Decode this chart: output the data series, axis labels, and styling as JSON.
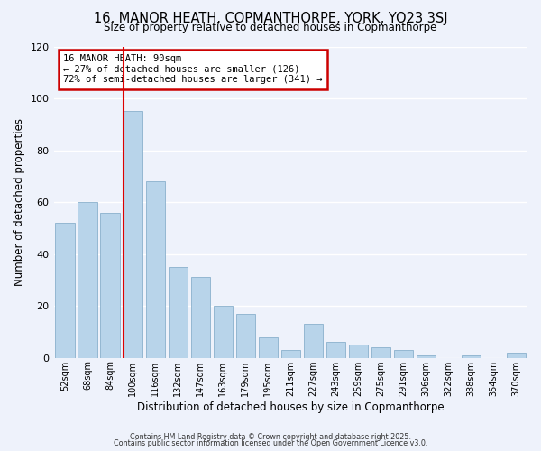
{
  "title": "16, MANOR HEATH, COPMANTHORPE, YORK, YO23 3SJ",
  "subtitle": "Size of property relative to detached houses in Copmanthorpe",
  "xlabel": "Distribution of detached houses by size in Copmanthorpe",
  "ylabel": "Number of detached properties",
  "bar_color": "#b8d4ea",
  "bar_edge_color": "#8ab0cc",
  "background_color": "#eef2fb",
  "grid_color": "#ffffff",
  "vline_color": "#dd0000",
  "categories": [
    "52sqm",
    "68sqm",
    "84sqm",
    "100sqm",
    "116sqm",
    "132sqm",
    "147sqm",
    "163sqm",
    "179sqm",
    "195sqm",
    "211sqm",
    "227sqm",
    "243sqm",
    "259sqm",
    "275sqm",
    "291sqm",
    "306sqm",
    "322sqm",
    "338sqm",
    "354sqm",
    "370sqm"
  ],
  "values": [
    52,
    60,
    56,
    95,
    68,
    35,
    31,
    20,
    17,
    8,
    3,
    13,
    6,
    5,
    4,
    3,
    1,
    0,
    1,
    0,
    2
  ],
  "n_bins": 21,
  "vline_bin": 2.6,
  "ylim": [
    0,
    120
  ],
  "yticks": [
    0,
    20,
    40,
    60,
    80,
    100,
    120
  ],
  "annotation_title": "16 MANOR HEATH: 90sqm",
  "annotation_line1": "← 27% of detached houses are smaller (126)",
  "annotation_line2": "72% of semi-detached houses are larger (341) →",
  "annotation_box_color": "white",
  "annotation_box_edge": "#cc0000",
  "footer1": "Contains HM Land Registry data © Crown copyright and database right 2025.",
  "footer2": "Contains public sector information licensed under the Open Government Licence v3.0."
}
